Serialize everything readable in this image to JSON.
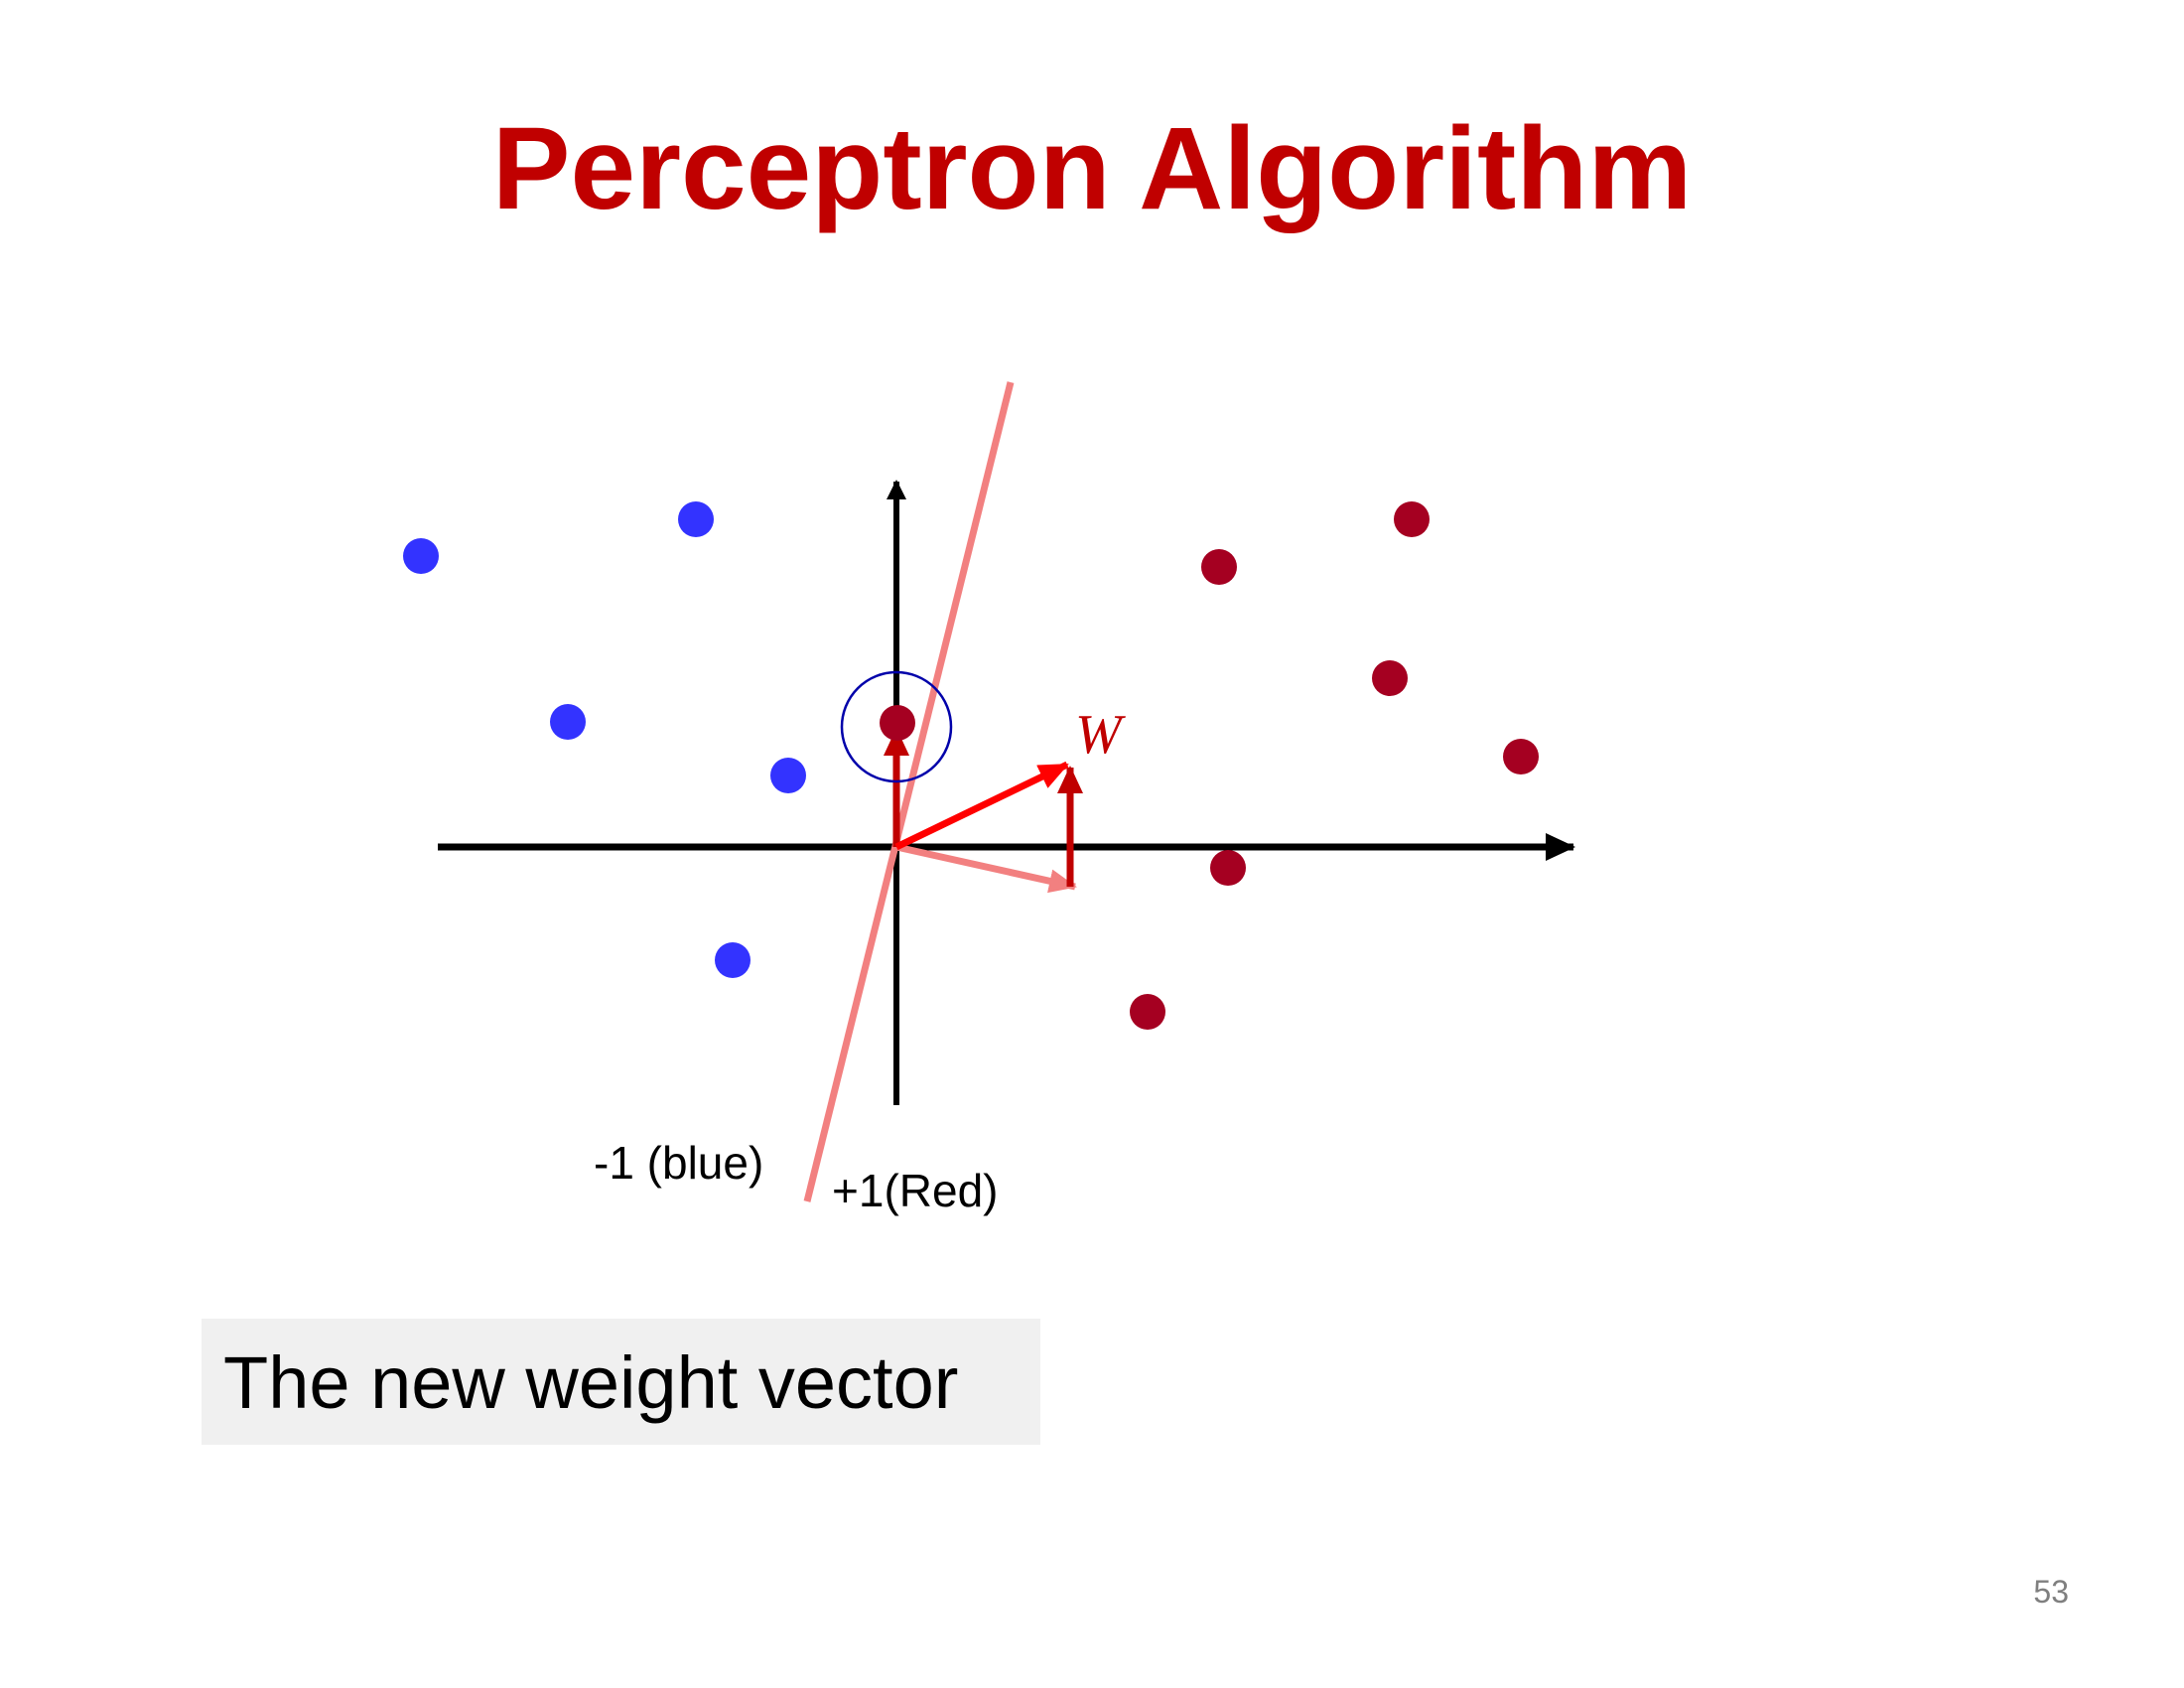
{
  "title": "Perceptron Algorithm",
  "diagram": {
    "weight_label": "W",
    "class_negative_label": "-1 (blue)",
    "class_positive_label": "+1(Red)",
    "colors": {
      "blue_points": "#3333ff",
      "red_points": "#a50021",
      "weight_vector": "#ff0000",
      "update_vector": "#c00000",
      "old_boundary": "#f28080",
      "highlight_circle": "#0000aa",
      "axes": "#000000"
    }
  },
  "caption": "The new weight vector",
  "page_number": "53"
}
